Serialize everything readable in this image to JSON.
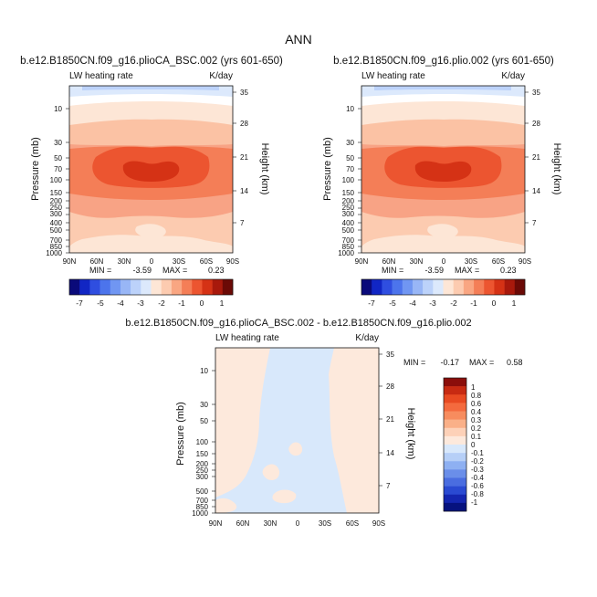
{
  "page_title": "ANN",
  "chart_data": [
    {
      "type": "heatmap",
      "id": "panel-top-left",
      "title": "b.e12.B1850CN.f09_g16.plioCA_BSC.002 (yrs 601-650)",
      "subtitle_left": "LW heating rate",
      "subtitle_right": "K/day",
      "ylabel": "Pressure (mb)",
      "ylabel_right": "Height (km)",
      "xticks": [
        "90N",
        "60N",
        "30N",
        "0",
        "30S",
        "60S",
        "90S"
      ],
      "yticks": [
        "10",
        "30",
        "50",
        "70",
        "100",
        "150",
        "200",
        "250",
        "300",
        "400",
        "500",
        "700",
        "850",
        "1000"
      ],
      "height_ticks": [
        "35",
        "28",
        "21",
        "14",
        "7"
      ],
      "stats": {
        "min_label": "MIN =",
        "min": "-3.59",
        "max_label": "MAX =",
        "max": "0.23"
      },
      "colorbar_labels": [
        "-7",
        "-5",
        "-4",
        "-3",
        "-2",
        "-1",
        "0",
        "1"
      ]
    },
    {
      "type": "heatmap",
      "id": "panel-top-right",
      "title": "b.e12.B1850CN.f09_g16.plio.002 (yrs 601-650)",
      "subtitle_left": "LW heating rate",
      "subtitle_right": "K/day",
      "ylabel": "Pressure (mb)",
      "ylabel_right": "Height (km)",
      "xticks": [
        "90N",
        "60N",
        "30N",
        "0",
        "30S",
        "60S",
        "90S"
      ],
      "yticks": [
        "10",
        "30",
        "50",
        "70",
        "100",
        "150",
        "200",
        "250",
        "300",
        "400",
        "500",
        "700",
        "850",
        "1000"
      ],
      "height_ticks": [
        "35",
        "28",
        "21",
        "14",
        "7"
      ],
      "stats": {
        "min_label": "MIN =",
        "min": "-3.59",
        "max_label": "MAX =",
        "max": "0.23"
      },
      "colorbar_labels": [
        "-7",
        "-5",
        "-4",
        "-3",
        "-2",
        "-1",
        "0",
        "1"
      ]
    },
    {
      "type": "heatmap",
      "id": "panel-difference",
      "title": "b.e12.B1850CN.f09_g16.plioCA_BSC.002 - b.e12.B1850CN.f09_g16.plio.002",
      "subtitle_left": "LW heating rate",
      "subtitle_right": "K/day",
      "ylabel": "Pressure (mb)",
      "ylabel_right": "Height (km)",
      "xticks": [
        "90N",
        "60N",
        "30N",
        "0",
        "30S",
        "60S",
        "90S"
      ],
      "yticks": [
        "10",
        "30",
        "50",
        "100",
        "150",
        "200",
        "250",
        "300",
        "500",
        "700",
        "850",
        "1000"
      ],
      "height_ticks": [
        "35",
        "28",
        "21",
        "14",
        "7"
      ],
      "stats": {
        "min_label": "MIN =",
        "min": "-0.17",
        "max_label": "MAX =",
        "max": "0.58"
      },
      "colorbar_labels": [
        "1",
        "0.8",
        "0.6",
        "0.4",
        "0.3",
        "0.2",
        "0.1",
        "0",
        "-0.1",
        "-0.2",
        "-0.3",
        "-0.4",
        "-0.6",
        "-0.8",
        "-1"
      ]
    }
  ],
  "colors": {
    "colorbar_top": [
      "#0a0a7a",
      "#1126c4",
      "#2f4ee0",
      "#4c74ec",
      "#7096f2",
      "#98b6f6",
      "#bcd2fa",
      "#dce9fc",
      "#fde6d6",
      "#fccbb0",
      "#f9a682",
      "#f47e57",
      "#ec5530",
      "#d53215",
      "#a8190c",
      "#6b0a06"
    ],
    "colorbar_diff": [
      "#8b0e0b",
      "#c72a12",
      "#e84a22",
      "#f46a3e",
      "#f78c5e",
      "#fab088",
      "#fdd1b8",
      "#fde9dc",
      "#d8e8fb",
      "#b6cff7",
      "#8eb0f2",
      "#6a8ee9",
      "#4a6de0",
      "#2a4ad2",
      "#1426b0",
      "#06127e"
    ]
  }
}
